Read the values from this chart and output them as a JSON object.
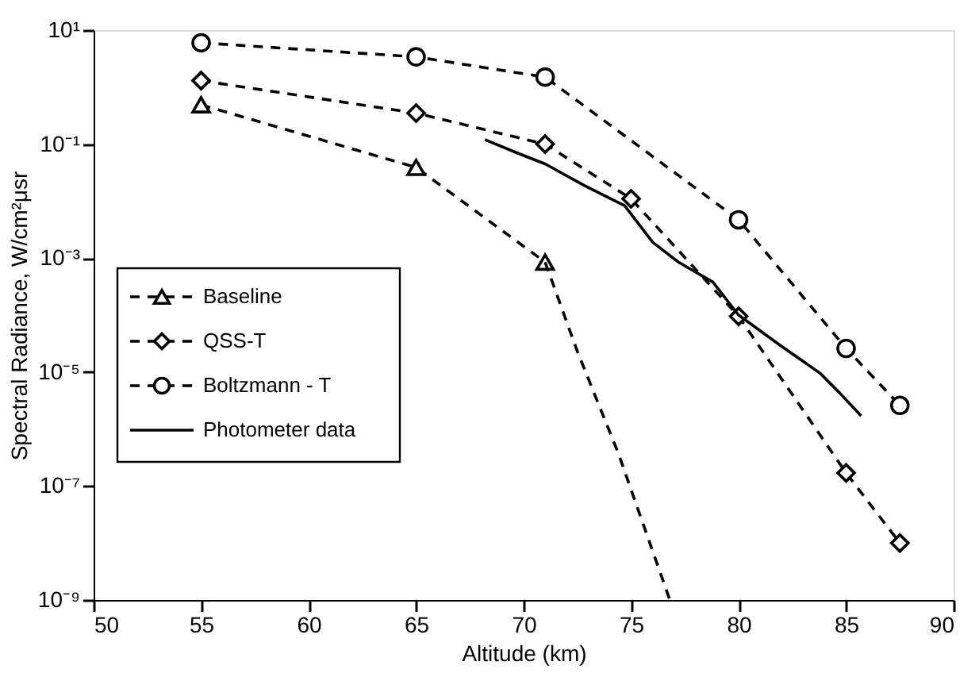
{
  "chart_data": {
    "type": "line",
    "xlabel": "Altitude (km)",
    "ylabel": "Spectral Radiance, W/cm²μsr",
    "log": "y",
    "grid": false,
    "legend": "left",
    "xlim": [
      50,
      90
    ],
    "xticks": [
      50,
      55,
      60,
      65,
      70,
      75,
      80,
      85,
      90
    ],
    "ylim": [
      1e-09,
      10
    ],
    "yticks": [
      {
        "value": 10,
        "label": "10¹"
      },
      {
        "value": 0.1,
        "label": "10⁻¹"
      },
      {
        "value": 0.001,
        "label": "10⁻³"
      },
      {
        "value": 1e-05,
        "label": "10⁻⁵"
      },
      {
        "value": 1e-07,
        "label": "10⁻⁷"
      },
      {
        "value": 1e-09,
        "label": "10⁻⁹"
      }
    ],
    "series": [
      {
        "name": "Baseline",
        "color": "#000000",
        "marker": "triangle",
        "line_style": "dashed",
        "x": [
          55,
          65,
          71
        ],
        "values": [
          0.49,
          0.039,
          0.00085
        ]
      },
      {
        "color": "#000000",
        "marker": "none",
        "line_style": "dashed",
        "x": [
          71,
          72.5,
          74.4,
          76.8
        ],
        "values": [
          0.00085,
          2.3e-05,
          3.8e-07,
          1e-09
        ]
      },
      {
        "name": "QSS-T",
        "color": "#000000",
        "marker": "diamond",
        "line_style": "dashed",
        "x": [
          55,
          65,
          71,
          75,
          80,
          85,
          87.5
        ],
        "values": [
          1.3,
          0.35,
          0.1,
          0.011,
          9.5e-05,
          1.7e-07,
          1e-08
        ]
      },
      {
        "name": "Boltzmann - T",
        "color": "#000000",
        "marker": "circle",
        "line_style": "dashed",
        "x": [
          55,
          65,
          71,
          80,
          85,
          87.5
        ],
        "values": [
          6,
          3.4,
          1.5,
          0.0047,
          2.6e-05,
          2.6e-06
        ]
      },
      {
        "name": "Photometer data",
        "color": "#000000",
        "marker": "none",
        "line_style": "solid",
        "x": [
          68.2,
          69.7,
          71,
          72.8,
          74.7,
          76,
          77.2,
          78.8,
          80,
          81.9,
          83.8,
          84.7,
          85.7
        ],
        "values": [
          0.12,
          0.07,
          0.045,
          0.019,
          0.0083,
          0.0019,
          0.00085,
          0.00038,
          0.0001,
          3e-05,
          9.5e-06,
          4.3e-06,
          1.7e-06
        ]
      }
    ]
  }
}
